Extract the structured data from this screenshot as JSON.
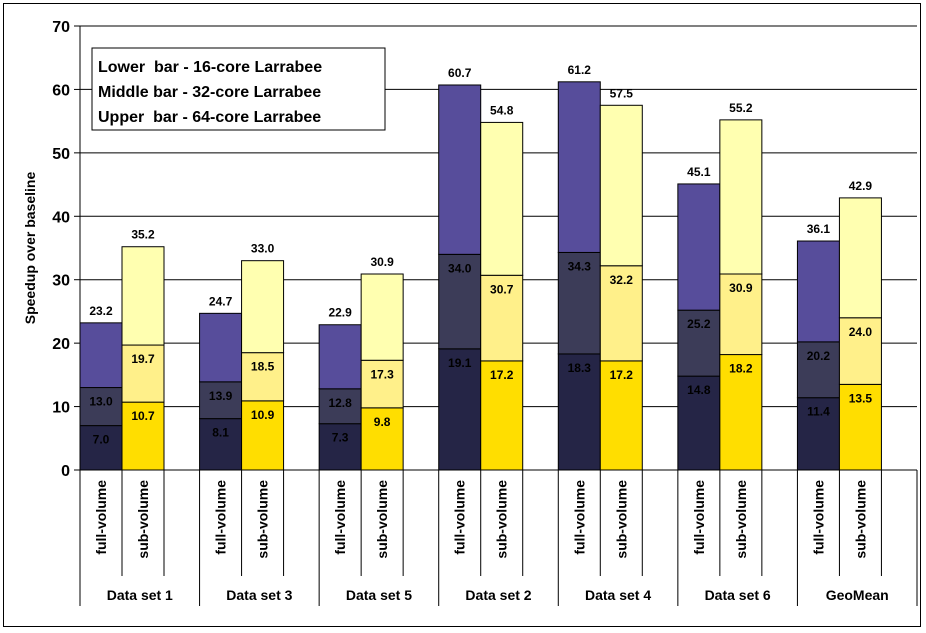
{
  "chart_data": {
    "type": "bar",
    "stacked": true,
    "title": "",
    "xlabel": "",
    "ylabel": "Speedup over baseline",
    "ylim": [
      0,
      70
    ],
    "yticks": [
      0,
      10,
      20,
      30,
      40,
      50,
      60,
      70
    ],
    "grid": true,
    "legend": {
      "placement": "top-left",
      "lines": [
        "Lower  bar - 16-core Larrabee",
        "Middle bar - 32-core Larrabee",
        "Upper  bar - 64-core Larrabee"
      ]
    },
    "groups": [
      {
        "name": "Data set 1",
        "bars": [
          {
            "label": "full-volume",
            "values": [
              7.0,
              13.0,
              23.2
            ],
            "labels": [
              "7.0",
              "13.0",
              "23.2"
            ]
          },
          {
            "label": "sub-volume",
            "values": [
              10.7,
              19.7,
              35.2
            ],
            "labels": [
              "10.7",
              "19.7",
              "35.2"
            ]
          }
        ]
      },
      {
        "name": "Data set 3",
        "bars": [
          {
            "label": "full-volume",
            "values": [
              8.1,
              13.9,
              24.7
            ],
            "labels": [
              "8.1",
              "13.9",
              "24.7"
            ]
          },
          {
            "label": "sub-volume",
            "values": [
              10.9,
              18.5,
              33.0
            ],
            "labels": [
              "10.9",
              "18.5",
              "33.0"
            ]
          }
        ]
      },
      {
        "name": "Data set 5",
        "bars": [
          {
            "label": "full-volume",
            "values": [
              7.3,
              12.8,
              22.9
            ],
            "labels": [
              "7.3",
              "12.8",
              "22.9"
            ]
          },
          {
            "label": "sub-volume",
            "values": [
              9.8,
              17.3,
              30.9
            ],
            "labels": [
              "9.8",
              "17.3",
              "30.9"
            ]
          }
        ]
      },
      {
        "name": "Data set 2",
        "bars": [
          {
            "label": "full-volume",
            "values": [
              19.1,
              34.0,
              60.7
            ],
            "labels": [
              "19.1",
              "34.0",
              "60.7"
            ]
          },
          {
            "label": "sub-volume",
            "values": [
              17.2,
              30.7,
              54.8
            ],
            "labels": [
              "17.2",
              "30.7",
              "54.8"
            ]
          }
        ]
      },
      {
        "name": "Data set 4",
        "bars": [
          {
            "label": "full-volume",
            "values": [
              18.3,
              34.3,
              61.2
            ],
            "labels": [
              "18.3",
              "34.3",
              "61.2"
            ]
          },
          {
            "label": "sub-volume",
            "values": [
              17.2,
              32.2,
              57.5
            ],
            "labels": [
              "17.2",
              "32.2",
              "57.5"
            ]
          }
        ]
      },
      {
        "name": "Data set 6",
        "bars": [
          {
            "label": "full-volume",
            "values": [
              14.8,
              25.2,
              45.1
            ],
            "labels": [
              "14.8",
              "25.2",
              "45.1"
            ]
          },
          {
            "label": "sub-volume",
            "values": [
              18.2,
              30.9,
              55.2
            ],
            "labels": [
              "18.2",
              "30.9",
              "55.2"
            ]
          }
        ]
      },
      {
        "name": "GeoMean",
        "bars": [
          {
            "label": "full-volume",
            "values": [
              11.4,
              20.2,
              36.1
            ],
            "labels": [
              "11.4",
              "20.2",
              "36.1"
            ]
          },
          {
            "label": "sub-volume",
            "values": [
              13.5,
              24.0,
              42.9
            ],
            "labels": [
              "13.5",
              "24.0",
              "42.9"
            ]
          }
        ]
      }
    ],
    "colors": {
      "full-volume": [
        "#252546",
        "#3c3c58",
        "#574d9b"
      ],
      "sub-volume": [
        "#ffde00",
        "#fff08a",
        "#ffffb0"
      ],
      "grid": "#000000"
    }
  }
}
